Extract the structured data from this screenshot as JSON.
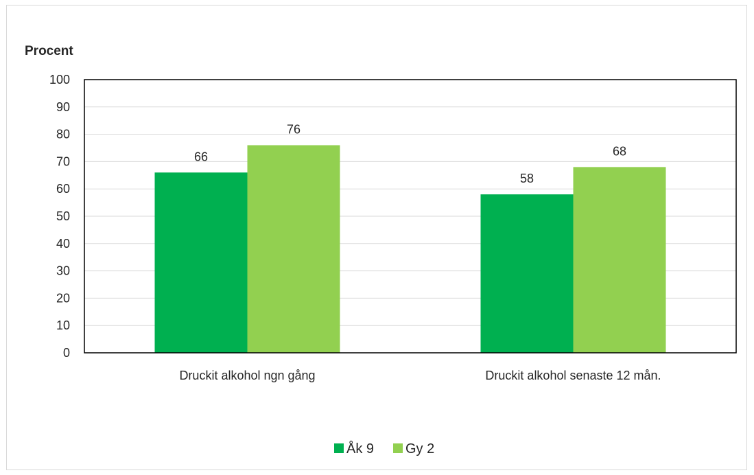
{
  "chart_data": {
    "type": "bar",
    "title": "",
    "xlabel": "",
    "ylabel": "Procent",
    "categories": [
      "Druckit alkohol ngn gång",
      "Druckit alkohol senaste 12 mån."
    ],
    "series": [
      {
        "name": "Åk 9",
        "values": [
          66,
          58
        ],
        "color": "#00b050"
      },
      {
        "name": "Gy 2",
        "values": [
          76,
          68
        ],
        "color": "#92d050"
      }
    ],
    "ylim": [
      0,
      100
    ],
    "yticks": [
      0,
      10,
      20,
      30,
      40,
      50,
      60,
      70,
      80,
      90,
      100
    ],
    "grid": true,
    "legend_position": "bottom",
    "gridline_color": "#d9d9d9",
    "axis_color": "#000000"
  }
}
